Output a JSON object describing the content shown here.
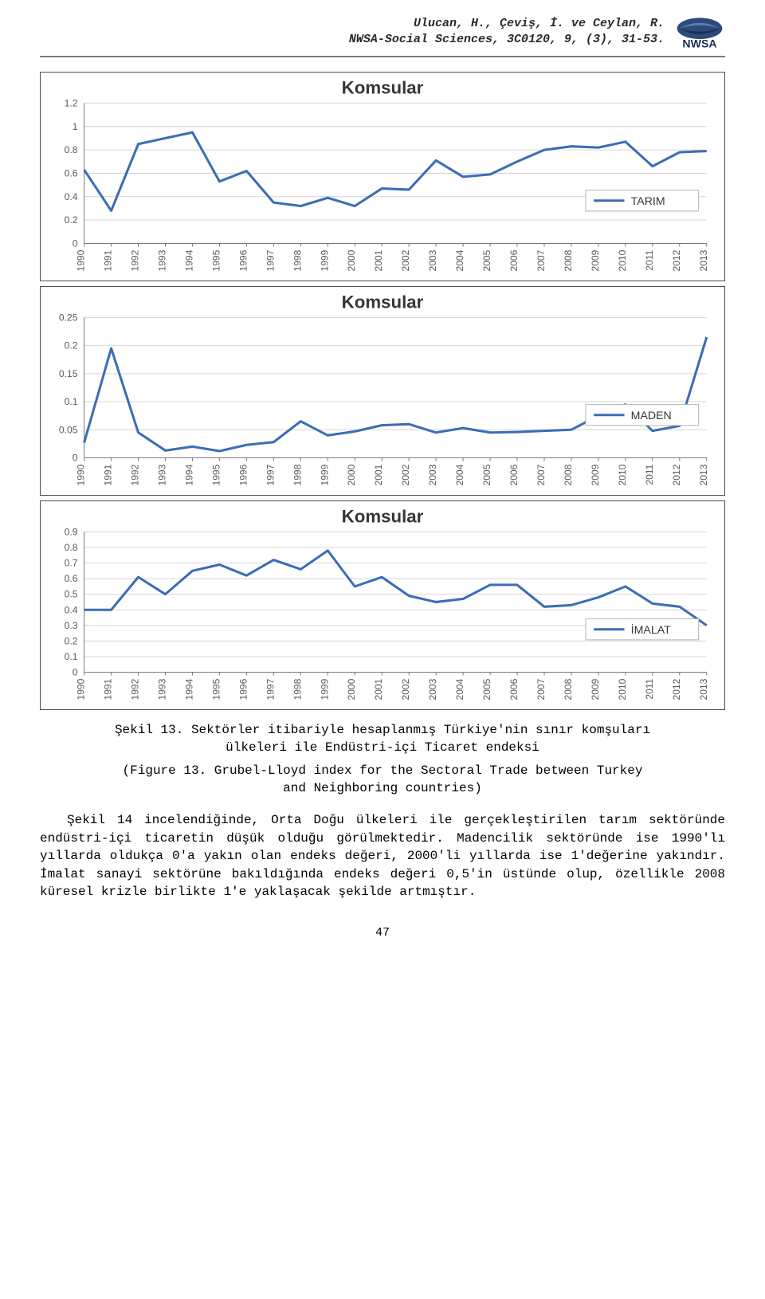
{
  "header": {
    "authors": "Ulucan, H., Çeviş, İ. ve Ceylan, R.",
    "journal": "NWSA-Social Sciences, 3C0120, 9, (3), 31-53."
  },
  "charts": [
    {
      "type": "line",
      "title": "Komsular",
      "legend": "TARIM",
      "line_color": "#3b6db5",
      "line_width": 3,
      "grid_color": "#d6d6d6",
      "axis_color": "#7a7a7a",
      "background_color": "#ffffff",
      "title_fontsize": 22,
      "label_fontsize": 12,
      "ylim": [
        0,
        1.2
      ],
      "ytick_step": 0.2,
      "x_labels": [
        "1990",
        "1991",
        "1992",
        "1993",
        "1994",
        "1995",
        "1996",
        "1997",
        "1998",
        "1999",
        "2000",
        "2001",
        "2002",
        "2003",
        "2004",
        "2005",
        "2006",
        "2007",
        "2008",
        "2009",
        "2010",
        "2011",
        "2012",
        "2013"
      ],
      "values": [
        0.63,
        0.28,
        0.85,
        0.9,
        0.95,
        0.53,
        0.62,
        0.35,
        0.32,
        0.39,
        0.32,
        0.47,
        0.46,
        0.71,
        0.57,
        0.59,
        0.7,
        0.8,
        0.83,
        0.82,
        0.87,
        0.66,
        0.78,
        0.79
      ]
    },
    {
      "type": "line",
      "title": "Komsular",
      "legend": "MADEN",
      "line_color": "#3b6db5",
      "line_width": 3,
      "grid_color": "#d6d6d6",
      "axis_color": "#7a7a7a",
      "background_color": "#ffffff",
      "title_fontsize": 22,
      "label_fontsize": 12,
      "ylim": [
        0,
        0.25
      ],
      "ytick_step": 0.05,
      "x_labels": [
        "1990",
        "1991",
        "1992",
        "1993",
        "1994",
        "1995",
        "1996",
        "1997",
        "1998",
        "1999",
        "2000",
        "2001",
        "2002",
        "2003",
        "2004",
        "2005",
        "2006",
        "2007",
        "2008",
        "2009",
        "2010",
        "2011",
        "2012",
        "2013"
      ],
      "values": [
        0.027,
        0.195,
        0.045,
        0.013,
        0.02,
        0.012,
        0.023,
        0.028,
        0.065,
        0.04,
        0.047,
        0.058,
        0.06,
        0.045,
        0.053,
        0.045,
        0.046,
        0.048,
        0.05,
        0.075,
        0.095,
        0.048,
        0.057,
        0.215
      ]
    },
    {
      "type": "line",
      "title": "Komsular",
      "legend": "İMALAT",
      "line_color": "#3b6db5",
      "line_width": 3,
      "grid_color": "#d6d6d6",
      "axis_color": "#7a7a7a",
      "background_color": "#ffffff",
      "title_fontsize": 22,
      "label_fontsize": 12,
      "ylim": [
        0,
        0.9
      ],
      "ytick_step": 0.1,
      "x_labels": [
        "1990",
        "1991",
        "1992",
        "1993",
        "1994",
        "1995",
        "1996",
        "1997",
        "1998",
        "1999",
        "2000",
        "2001",
        "2002",
        "2003",
        "2004",
        "2005",
        "2006",
        "2007",
        "2008",
        "2009",
        "2010",
        "2011",
        "2012",
        "2013"
      ],
      "values": [
        0.4,
        0.4,
        0.61,
        0.5,
        0.65,
        0.69,
        0.62,
        0.72,
        0.66,
        0.78,
        0.55,
        0.61,
        0.49,
        0.45,
        0.47,
        0.56,
        0.56,
        0.42,
        0.43,
        0.48,
        0.55,
        0.44,
        0.42,
        0.3
      ]
    }
  ],
  "caption_tr_line1": "Şekil 13. Sektörler itibariyle hesaplanmış Türkiye'nin sınır komşuları",
  "caption_tr_line2": "ülkeleri ile Endüstri-içi Ticaret endeksi",
  "caption_en_line1": "(Figure 13. Grubel-Lloyd index for the Sectoral Trade between Turkey",
  "caption_en_line2": "and Neighboring countries)",
  "paragraph": "Şekil 14 incelendiğinde, Orta Doğu ülkeleri ile gerçekleştirilen tarım sektöründe endüstri-içi ticaretin düşük olduğu görülmektedir. Madencilik sektöründe ise 1990'lı yıllarda oldukça 0'a yakın olan endeks değeri, 2000'li yıllarda ise 1'değerine yakındır. İmalat sanayi sektörüne bakıldığında endeks değeri 0,5'in üstünde olup, özellikle 2008 küresel krizle birlikte 1'e yaklaşacak şekilde artmıştır.",
  "page_number": "47"
}
